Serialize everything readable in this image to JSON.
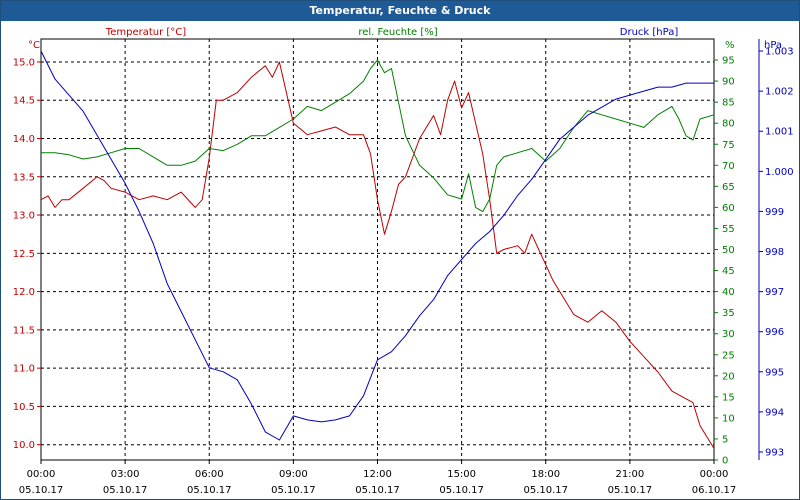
{
  "window": {
    "title": "Temperatur, Feuchte & Druck"
  },
  "chart_data": {
    "type": "line",
    "title": "Temperatur, Feuchte & Druck",
    "grid": true,
    "legend": "top",
    "x": {
      "range": [
        "2017-10-05T00:00",
        "2017-10-06T00:00"
      ],
      "ticks": [
        {
          "time": "00:00",
          "date": "05.10.17"
        },
        {
          "time": "03:00",
          "date": "05.10.17"
        },
        {
          "time": "06:00",
          "date": "05.10.17"
        },
        {
          "time": "09:00",
          "date": "05.10.17"
        },
        {
          "time": "12:00",
          "date": "05.10.17"
        },
        {
          "time": "15:00",
          "date": "05.10.17"
        },
        {
          "time": "18:00",
          "date": "05.10.17"
        },
        {
          "time": "21:00",
          "date": "05.10.17"
        },
        {
          "time": "00:00",
          "date": "06.10.17"
        }
      ]
    },
    "axes": {
      "temperature": {
        "unit_label": "°C",
        "ylim": [
          9.8,
          15.3
        ],
        "color": "#c00000",
        "ticks": [
          "10.0",
          "10.5",
          "11.0",
          "11.5",
          "12.0",
          "12.5",
          "13.0",
          "13.5",
          "14.0",
          "14.5",
          "15.0"
        ]
      },
      "humidity": {
        "unit_label": "%",
        "ylim": [
          0,
          100
        ],
        "color": "#008000",
        "ticks": [
          "0",
          "5",
          "10",
          "15",
          "20",
          "25",
          "30",
          "35",
          "40",
          "45",
          "50",
          "55",
          "60",
          "65",
          "70",
          "75",
          "80",
          "85",
          "90",
          "95"
        ]
      },
      "pressure": {
        "unit_label": "hPa",
        "ylim": [
          992.8,
          1003.3
        ],
        "color": "#0000c0",
        "ticks": [
          "993",
          "994",
          "995",
          "996",
          "997",
          "998",
          "999",
          "1.000",
          "1.001",
          "1.002",
          "1.003"
        ]
      }
    },
    "series": [
      {
        "name": "Temperatur [°C]",
        "axis": "temperature",
        "color": "#c00000",
        "hours": [
          0,
          0.25,
          0.5,
          0.75,
          1,
          1.5,
          2,
          2.25,
          2.5,
          3,
          3.5,
          4,
          4.5,
          5,
          5.5,
          5.75,
          6,
          6.25,
          6.5,
          7,
          7.5,
          8,
          8.25,
          8.5,
          8.75,
          9,
          9.5,
          10,
          10.5,
          11,
          11.5,
          11.75,
          12,
          12.25,
          12.5,
          12.75,
          13,
          13.5,
          14,
          14.25,
          14.5,
          14.75,
          15,
          15.25,
          15.5,
          15.75,
          16,
          16.25,
          16.5,
          17,
          17.25,
          17.5,
          17.75,
          18,
          18.25,
          18.5,
          19,
          19.5,
          20,
          20.5,
          21,
          21.5,
          22,
          22.5,
          23,
          23.25,
          23.5,
          23.75,
          24
        ],
        "values": [
          13.2,
          13.25,
          13.1,
          13.2,
          13.2,
          13.35,
          13.5,
          13.45,
          13.35,
          13.3,
          13.2,
          13.25,
          13.2,
          13.3,
          13.1,
          13.2,
          13.75,
          14.5,
          14.5,
          14.6,
          14.8,
          14.95,
          14.8,
          15.0,
          14.6,
          14.2,
          14.05,
          14.1,
          14.15,
          14.05,
          14.05,
          13.8,
          13.2,
          12.75,
          13.05,
          13.4,
          13.5,
          14.0,
          14.3,
          14.05,
          14.5,
          14.75,
          14.4,
          14.6,
          14.2,
          13.8,
          13.2,
          12.5,
          12.55,
          12.6,
          12.5,
          12.75,
          12.55,
          12.35,
          12.15,
          12.0,
          11.7,
          11.6,
          11.75,
          11.6,
          11.35,
          11.15,
          10.95,
          10.7,
          10.6,
          10.55,
          10.25,
          10.1,
          9.95
        ]
      },
      {
        "name": "rel. Feuchte [%]",
        "axis": "humidity",
        "color": "#008000",
        "hours": [
          0,
          0.5,
          1,
          1.5,
          2,
          2.5,
          3,
          3.5,
          4,
          4.5,
          5,
          5.5,
          6,
          6.5,
          7,
          7.5,
          8,
          8.5,
          9,
          9.5,
          10,
          10.5,
          11,
          11.5,
          11.75,
          12,
          12.25,
          12.5,
          12.75,
          13,
          13.5,
          14,
          14.5,
          15,
          15.25,
          15.5,
          15.75,
          16,
          16.25,
          16.5,
          17,
          17.5,
          18,
          18.5,
          19,
          19.5,
          20,
          20.5,
          21,
          21.5,
          22,
          22.5,
          22.75,
          23,
          23.25,
          23.5,
          24
        ],
        "values": [
          73,
          73,
          72.5,
          71.5,
          72,
          73,
          74,
          74,
          72,
          70,
          70,
          71,
          74,
          73.5,
          75,
          77,
          77,
          79,
          81,
          84,
          83,
          85,
          87,
          90,
          93,
          95,
          92,
          93,
          85,
          77,
          70,
          67,
          63,
          62,
          68,
          60,
          59,
          62,
          70,
          72,
          73,
          74,
          71,
          74,
          79,
          83,
          82,
          81,
          80,
          79,
          82,
          84,
          81,
          77,
          76,
          81,
          82
        ]
      },
      {
        "name": "Druck [hPa]",
        "axis": "pressure",
        "color": "#0000c0",
        "hours": [
          0,
          0.5,
          1,
          1.5,
          2,
          2.5,
          3,
          3.5,
          4,
          4.5,
          5,
          5.5,
          6,
          6.5,
          7,
          7.5,
          8,
          8.5,
          9,
          9.5,
          10,
          10.5,
          11,
          11.5,
          12,
          12.5,
          13,
          13.5,
          14,
          14.5,
          15,
          15.5,
          16,
          16.5,
          17,
          17.5,
          18,
          18.5,
          19,
          19.5,
          20,
          20.5,
          21,
          21.5,
          22,
          22.5,
          23,
          23.5,
          24
        ],
        "values": [
          1003.0,
          1002.3,
          1001.9,
          1001.5,
          1000.9,
          1000.3,
          999.7,
          999.0,
          998.2,
          997.2,
          996.5,
          995.8,
          995.1,
          995.0,
          994.8,
          994.2,
          993.5,
          993.3,
          993.9,
          993.8,
          993.75,
          993.8,
          993.9,
          994.4,
          995.3,
          995.5,
          995.9,
          996.4,
          996.8,
          997.4,
          997.8,
          998.2,
          998.5,
          998.9,
          999.4,
          999.8,
          1000.3,
          1000.8,
          1001.1,
          1001.4,
          1001.6,
          1001.8,
          1001.9,
          1002.0,
          1002.1,
          1002.1,
          1002.2,
          1002.2,
          1002.2
        ]
      }
    ]
  }
}
